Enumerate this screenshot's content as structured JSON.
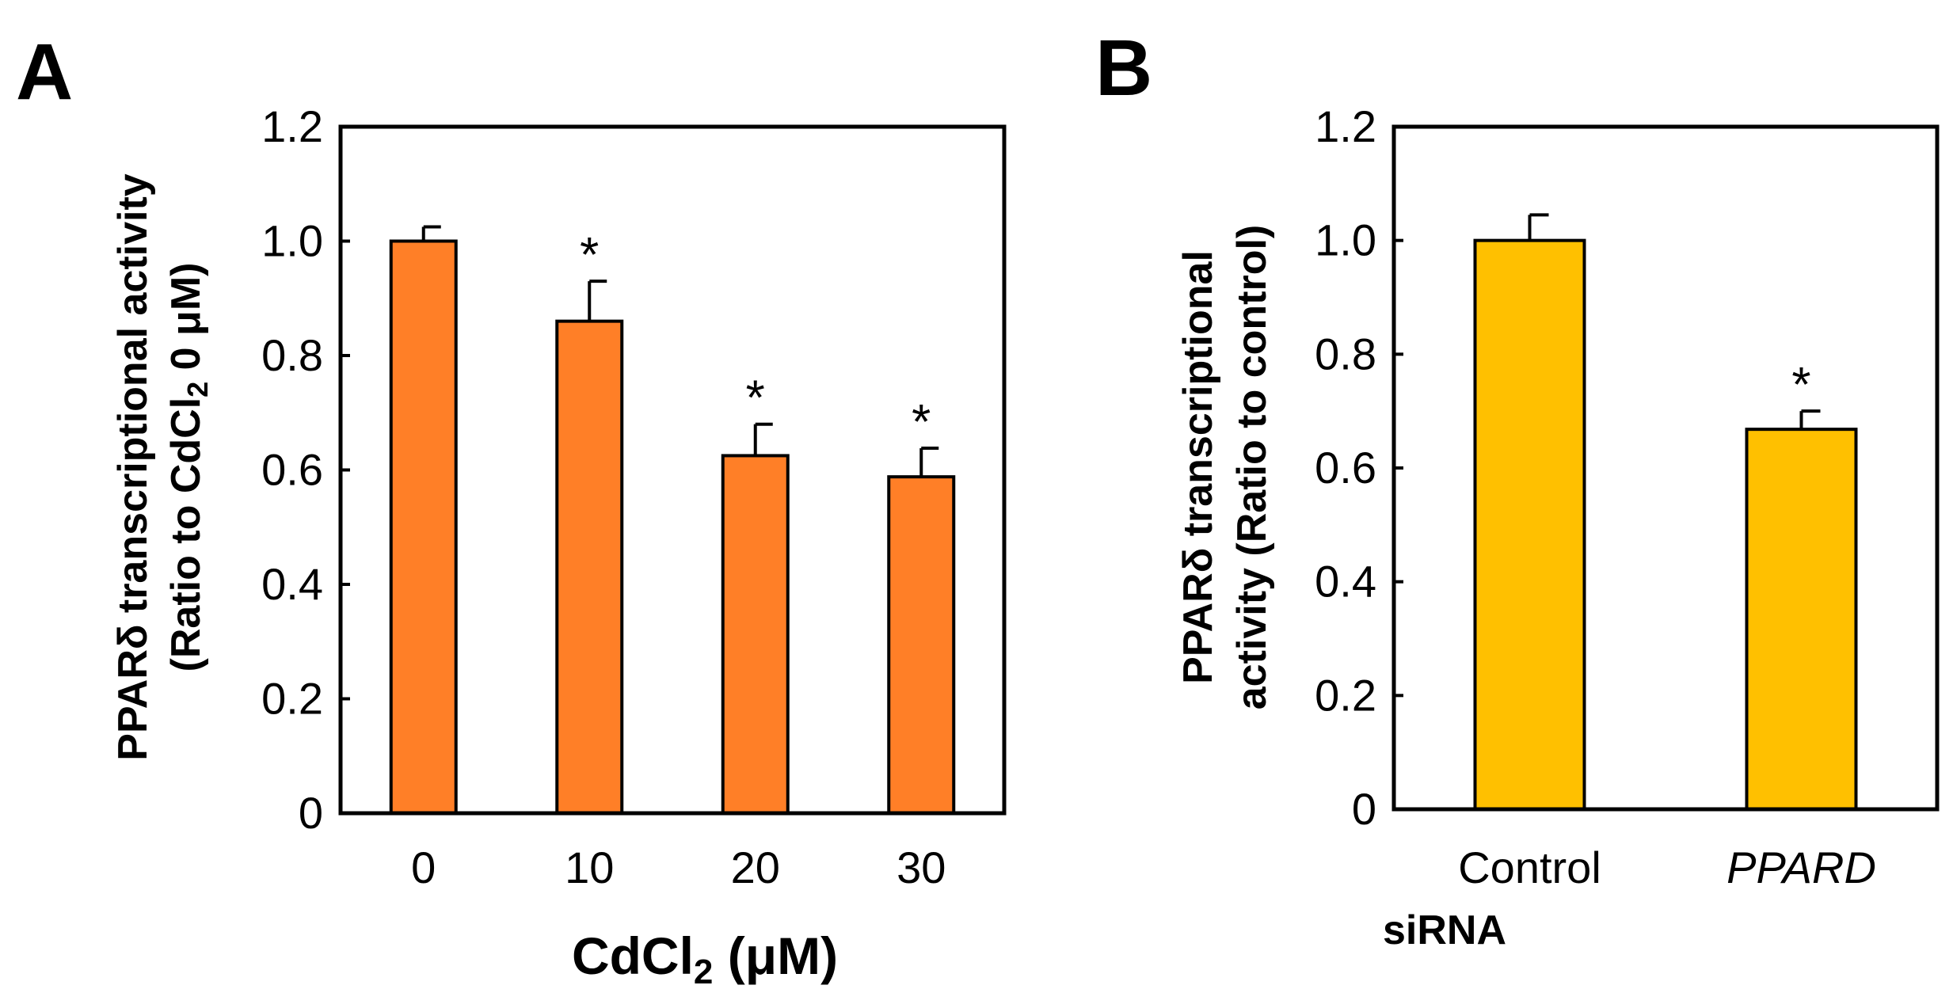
{
  "chart_data": [
    {
      "type": "bar",
      "panel": "A",
      "categories": [
        "0",
        "10",
        "20",
        "30"
      ],
      "values": [
        1.0,
        0.86,
        0.625,
        0.588
      ],
      "errors": [
        0.025,
        0.07,
        0.055,
        0.05
      ],
      "significant": [
        false,
        true,
        true,
        true
      ],
      "significance_marker": "*",
      "color": "#ff7f27",
      "ylim": [
        0,
        1.2
      ],
      "yticks": [
        "0",
        "0.2",
        "0.4",
        "0.6",
        "0.8",
        "1.0",
        "1.2"
      ],
      "ylabel_line1": "PPARδ transcriptional activity",
      "ylabel_line2_pre": "(Ratio to CdCl",
      "ylabel_line2_sub": "2",
      "ylabel_line2_post": " 0 μM)",
      "xlabel_pre": "CdCl",
      "xlabel_sub": "2",
      "xlabel_post": " (μM)"
    },
    {
      "type": "bar",
      "panel": "B",
      "categories": [
        "Control",
        "PPARD"
      ],
      "values": [
        1.0,
        0.668
      ],
      "errors": [
        0.045,
        0.032
      ],
      "significant": [
        false,
        true
      ],
      "significance_marker": "*",
      "color": "#ffc000",
      "ylim": [
        0,
        1.2
      ],
      "yticks": [
        "0",
        "0.2",
        "0.4",
        "0.6",
        "0.8",
        "1.0",
        "1.2"
      ],
      "ylabel_line1": "PPARδ transcriptional",
      "ylabel_line2": "activity (Ratio to control)",
      "xlabel": "siRNA"
    }
  ]
}
